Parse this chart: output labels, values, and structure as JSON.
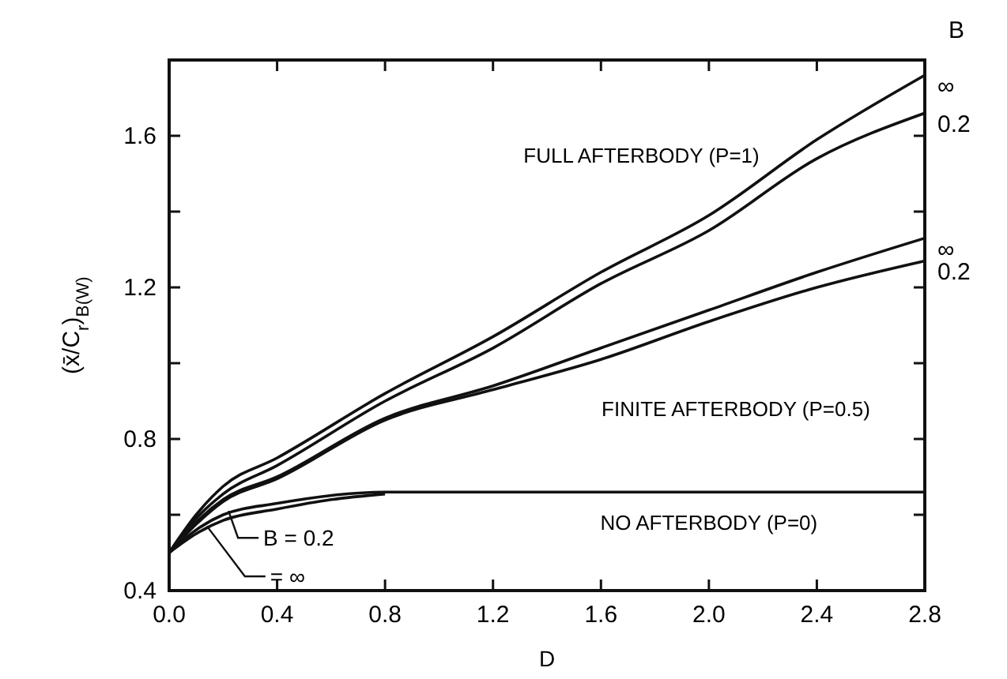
{
  "chart_data": {
    "type": "line",
    "xlabel": "D",
    "ylabel": "(x̄/C$_{r}$)$_{B(W)}$",
    "x": [
      0,
      0.1,
      0.2,
      0.4,
      0.8,
      1.2,
      1.6,
      2.0,
      2.4,
      2.8
    ],
    "series": [
      {
        "color": "#111111",
        "values": [
          0.5,
          0.6,
          0.675,
          0.75,
          0.92,
          1.07,
          1.24,
          1.39,
          1.59,
          1.76
        ]
      },
      {
        "color": "#111111",
        "values": [
          0.5,
          0.59,
          0.655,
          0.73,
          0.9,
          1.04,
          1.21,
          1.35,
          1.54,
          1.66
        ]
      },
      {
        "color": "#111111",
        "values": [
          0.5,
          0.58,
          0.64,
          0.7,
          0.855,
          0.94,
          1.04,
          1.14,
          1.24,
          1.33
        ]
      },
      {
        "color": "#111111",
        "values": [
          0.5,
          0.575,
          0.635,
          0.695,
          0.85,
          0.93,
          1.01,
          1.11,
          1.2,
          1.27
        ]
      },
      {
        "color": "#111111",
        "values": [
          0.5,
          0.56,
          0.6,
          0.63,
          0.66,
          0.66,
          0.66,
          0.66,
          0.66,
          0.66
        ]
      },
      {
        "color": "#111111",
        "x": [
          0,
          0.1,
          0.2,
          0.4,
          0.6,
          0.8
        ],
        "values": [
          0.5,
          0.55,
          0.585,
          0.615,
          0.64,
          0.655
        ]
      }
    ],
    "xlim": [
      0,
      2.8
    ],
    "xticks": [
      {
        "value": 0,
        "label": "0.0"
      },
      0.4,
      0.8,
      1.2,
      1.6,
      {
        "value": 2,
        "label": "2.0"
      },
      2.4,
      2.8
    ],
    "ylim": [
      0.4,
      1.8
    ],
    "yticks": [
      0.4,
      {
        "value": 0.6,
        "label": null
      },
      0.8,
      {
        "value": 1,
        "label": null
      },
      1.2,
      {
        "value": 1.4,
        "label": null
      },
      1.6,
      {
        "value": 1.8,
        "label": null
      }
    ],
    "grid": false,
    "marker": "none",
    "line_style": "solid",
    "annotations": [
      "FULL AFTERBODY (P=1)",
      "FINITE AFTERBODY (P=0.5)",
      "NO AFTERBODY (P=0)",
      {
        "text": "B = 0.2",
        "x": 0.22,
        "y": 0.61
      },
      {
        "text": "= ∞",
        "x": 0.14,
        "y": 0.57
      },
      "B",
      {
        "text": "∞",
        "x": 2.8,
        "y": 1.76
      },
      {
        "text": "0.2",
        "x": 2.8,
        "y": 1.66
      },
      {
        "text": "∞",
        "x": 2.8,
        "y": 1.33
      },
      {
        "text": "0.2",
        "x": 2.8,
        "y": 1.27
      }
    ]
  }
}
